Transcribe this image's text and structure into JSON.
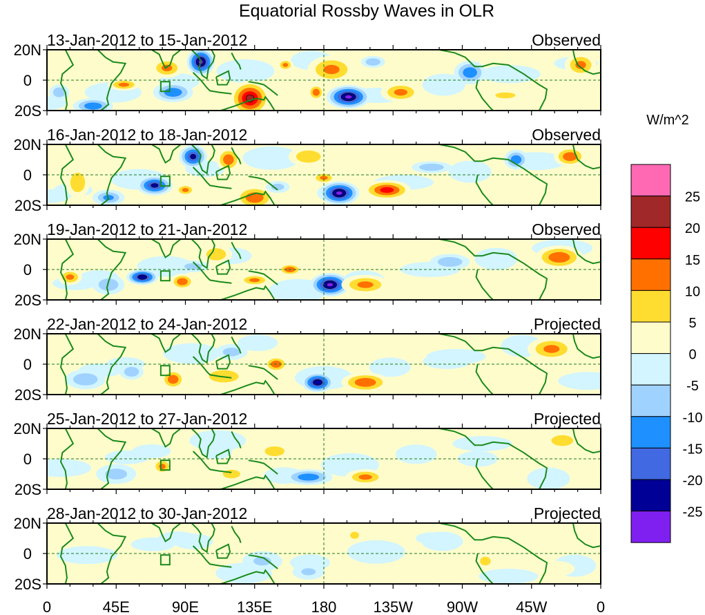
{
  "chart_data": {
    "type": "heatmap",
    "title": "Equatorial Rossby Waves in OLR",
    "units_label": "W/m^2",
    "x_ticks": [
      "0",
      "45E",
      "90E",
      "135E",
      "180",
      "135W",
      "90W",
      "45W",
      "0"
    ],
    "x_tick_lons": [
      0,
      45,
      90,
      135,
      180,
      225,
      270,
      315,
      360
    ],
    "y_ticks": [
      "20N",
      "0",
      "20S"
    ],
    "lon_range": [
      0,
      360
    ],
    "lat_range": [
      -20,
      20
    ],
    "colorbar": {
      "levels": [
        "25",
        "20",
        "15",
        "10",
        "5",
        "0",
        "-5",
        "-10",
        "-15",
        "-20",
        "-25"
      ],
      "colors": [
        "#FF69B4",
        "#A02828",
        "#FF0000",
        "#FF7000",
        "#FFDD30",
        "#FFFCCC",
        "#D2F5FF",
        "#A0D2FF",
        "#1E90FF",
        "#4169E1",
        "#000096",
        "#8020F0"
      ]
    },
    "panels": [
      {
        "dates": "13-Jan-2012 to 15-Jan-2012",
        "kind": "Observed",
        "anomalies": [
          [
            100,
            12,
            7,
            7,
            -27
          ],
          [
            78,
            8,
            8,
            5,
            12
          ],
          [
            132,
            -12,
            10,
            9,
            22
          ],
          [
            196,
            -11,
            11,
            6,
            -27
          ],
          [
            175,
            -8,
            4,
            4,
            15
          ],
          [
            185,
            7,
            12,
            7,
            12
          ],
          [
            230,
            -8,
            10,
            5,
            12
          ],
          [
            50,
            -3,
            8,
            3,
            12
          ],
          [
            82,
            -8,
            10,
            5,
            -15
          ],
          [
            275,
            5,
            8,
            6,
            -15
          ],
          [
            347,
            10,
            8,
            6,
            12
          ],
          [
            155,
            10,
            4,
            3,
            12
          ],
          [
            30,
            -17,
            10,
            4,
            -15
          ],
          [
            212,
            12,
            6,
            3,
            -10
          ],
          [
            298,
            -10,
            10,
            3,
            7
          ],
          [
            8,
            -8,
            5,
            4,
            -10
          ]
        ]
      },
      {
        "dates": "16-Jan-2012 to 18-Jan-2012",
        "kind": "Observed",
        "anomalies": [
          [
            95,
            12,
            7,
            6,
            -22
          ],
          [
            70,
            -7,
            9,
            5,
            -22
          ],
          [
            118,
            10,
            6,
            6,
            15
          ],
          [
            135,
            -15,
            10,
            6,
            15
          ],
          [
            190,
            -12,
            10,
            6,
            -27
          ],
          [
            221,
            -10,
            12,
            5,
            18
          ],
          [
            180,
            -2,
            6,
            3,
            12
          ],
          [
            170,
            12,
            10,
            5,
            10
          ],
          [
            340,
            12,
            8,
            5,
            15
          ],
          [
            250,
            5,
            10,
            3,
            -10
          ],
          [
            305,
            10,
            6,
            5,
            -15
          ],
          [
            20,
            -5,
            6,
            8,
            10
          ],
          [
            90,
            -10,
            5,
            3,
            12
          ],
          [
            40,
            -15,
            8,
            4,
            -12
          ],
          [
            150,
            -8,
            6,
            3,
            -8
          ]
        ]
      },
      {
        "dates": "19-Jan-2012 to 21-Jan-2012",
        "kind": "Observed",
        "anomalies": [
          [
            62,
            -5,
            8,
            4,
            -25
          ],
          [
            88,
            -8,
            6,
            4,
            15
          ],
          [
            184,
            -10,
            10,
            6,
            -27
          ],
          [
            207,
            -10,
            12,
            5,
            12
          ],
          [
            158,
            0,
            6,
            3,
            15
          ],
          [
            333,
            8,
            12,
            6,
            15
          ],
          [
            15,
            -5,
            6,
            4,
            12
          ],
          [
            110,
            10,
            8,
            5,
            10
          ],
          [
            135,
            -7,
            8,
            3,
            12
          ],
          [
            262,
            5,
            10,
            4,
            -10
          ],
          [
            40,
            -10,
            8,
            5,
            -10
          ],
          [
            95,
            2,
            8,
            3,
            -8
          ]
        ]
      },
      {
        "dates": "22-Jan-2012 to 24-Jan-2012",
        "kind": "Projected",
        "anomalies": [
          [
            176,
            -12,
            8,
            5,
            -25
          ],
          [
            207,
            -12,
            12,
            5,
            15
          ],
          [
            82,
            -10,
            6,
            5,
            15
          ],
          [
            149,
            0,
            6,
            4,
            15
          ],
          [
            328,
            10,
            12,
            6,
            12
          ],
          [
            55,
            -5,
            6,
            4,
            -10
          ],
          [
            115,
            -8,
            12,
            5,
            10
          ],
          [
            25,
            -10,
            10,
            5,
            -10
          ],
          [
            120,
            8,
            8,
            4,
            -8
          ],
          [
            260,
            2,
            12,
            4,
            -5
          ]
        ]
      },
      {
        "dates": "25-Jan-2012 to 27-Jan-2012",
        "kind": "Projected",
        "anomalies": [
          [
            170,
            -12,
            12,
            4,
            -15
          ],
          [
            207,
            -12,
            10,
            4,
            12
          ],
          [
            75,
            -5,
            5,
            4,
            12
          ],
          [
            148,
            5,
            8,
            4,
            10
          ],
          [
            335,
            12,
            10,
            5,
            8
          ],
          [
            110,
            5,
            8,
            4,
            -5
          ],
          [
            280,
            0,
            10,
            4,
            -5
          ],
          [
            45,
            -10,
            10,
            5,
            -8
          ],
          [
            120,
            -10,
            8,
            4,
            8
          ]
        ]
      },
      {
        "dates": "28-Jan-2012 to 30-Jan-2012",
        "kind": "Projected",
        "anomalies": [
          [
            200,
            12,
            5,
            4,
            6
          ],
          [
            285,
            -5,
            6,
            5,
            6
          ],
          [
            140,
            -5,
            10,
            5,
            -6
          ],
          [
            170,
            -12,
            8,
            4,
            -6
          ],
          [
            95,
            8,
            10,
            4,
            -5
          ],
          [
            60,
            -10,
            12,
            4,
            5
          ],
          [
            330,
            -10,
            10,
            4,
            5
          ],
          [
            250,
            10,
            8,
            3,
            -5
          ]
        ]
      }
    ]
  }
}
